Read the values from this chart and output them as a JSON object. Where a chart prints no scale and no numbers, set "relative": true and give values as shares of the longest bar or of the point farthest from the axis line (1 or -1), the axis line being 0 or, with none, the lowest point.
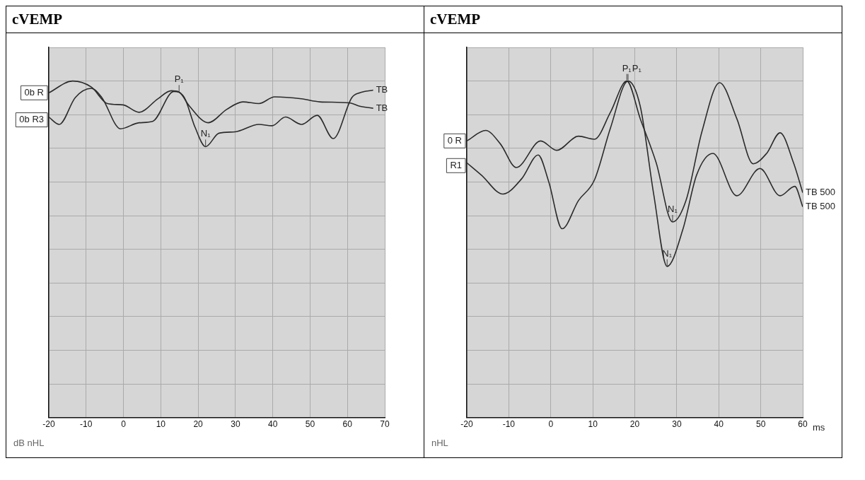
{
  "chart_data": [
    {
      "type": "line",
      "title": "cVEMP",
      "relative": true,
      "grid": true,
      "legend": false,
      "marker": "none",
      "xlim": [
        -20,
        70
      ],
      "xticks": [
        -20,
        -10,
        0,
        10,
        20,
        30,
        40,
        50,
        60,
        70
      ],
      "series": [
        {
          "name": "0b R",
          "color": "#2b2b2b",
          "x": [
            -20,
            -13.6,
            -8.6,
            -4.3,
            -0.1,
            4.2,
            9.2,
            12.8,
            14.9,
            17.7,
            22.7,
            27.7,
            32.0,
            36.3,
            40.5,
            47.7,
            52.6,
            60.5,
            63.3,
            66.9
          ],
          "values": [
            0.965,
            1,
            0.982,
            0.933,
            0.929,
            0.907,
            0.947,
            0.971,
            0.967,
            0.925,
            0.876,
            0.916,
            0.938,
            0.933,
            0.953,
            0.947,
            0.938,
            0.935,
            0.925,
            0.919
          ]
        },
        {
          "name": "0b R3",
          "color": "#2b2b2b",
          "x": [
            -20,
            -17.2,
            -12.9,
            -8.6,
            -5.8,
            -0.8,
            4.2,
            7.8,
            13.5,
            16.3,
            19.2,
            22.0,
            25.6,
            29.9,
            36.3,
            39.8,
            43.4,
            47.7,
            51.9,
            56.2,
            61.2,
            63.3,
            66.9
          ],
          "values": [
            0.893,
            0.871,
            0.951,
            0.978,
            0.951,
            0.858,
            0.876,
            0.88,
            0.969,
            0.951,
            0.862,
            0.805,
            0.845,
            0.849,
            0.871,
            0.867,
            0.893,
            0.871,
            0.898,
            0.829,
            0.951,
            0.965,
            0.973
          ]
        }
      ],
      "annotations": [
        {
          "text": "P₁",
          "x": 14.9,
          "y": 0.967
        },
        {
          "text": "N₁",
          "x": 22.0,
          "y": 0.805
        },
        {
          "text": "TB",
          "x": 66.9,
          "y": 0.973
        },
        {
          "text": "TB",
          "x": 66.9,
          "y": 0.919
        },
        "dB nHL"
      ]
    },
    {
      "type": "line",
      "title": "cVEMP",
      "xlabel": "ms",
      "relative": true,
      "grid": true,
      "legend": false,
      "marker": "none",
      "xlim": [
        -20,
        60
      ],
      "xticks": [
        -20,
        -10,
        0,
        10,
        20,
        30,
        40,
        50,
        60
      ],
      "series": [
        {
          "name": "0 R",
          "color": "#2b2b2b",
          "x": [
            -20,
            -15.5,
            -12,
            -8.2,
            -2.4,
            1.4,
            6.6,
            10.4,
            14.2,
            18.1,
            21.3,
            25.1,
            29,
            32.2,
            36,
            40.2,
            44.3,
            48.2,
            51.4,
            54.6,
            57.8,
            60
          ],
          "values": [
            0.822,
            0.853,
            0.813,
            0.743,
            0.822,
            0.794,
            0.836,
            0.827,
            0.907,
            1.0,
            0.888,
            0.757,
            0.581,
            0.645,
            0.85,
            0.995,
            0.888,
            0.754,
            0.785,
            0.846,
            0.757,
            0.668
          ]
        },
        {
          "name": "R1",
          "color": "#2b2b2b",
          "x": [
            -20,
            -16.5,
            -11.4,
            -6.9,
            -3,
            -0.5,
            2.7,
            6.6,
            10.4,
            14.2,
            18.4,
            21.3,
            24.5,
            27.7,
            31.5,
            34.7,
            38.6,
            44.3,
            49.8,
            54.6,
            58.1,
            60
          ],
          "values": [
            0.757,
            0.72,
            0.664,
            0.71,
            0.78,
            0.701,
            0.561,
            0.645,
            0.706,
            0.86,
            1.0,
            0.925,
            0.664,
            0.449,
            0.561,
            0.72,
            0.785,
            0.659,
            0.74,
            0.659,
            0.687,
            0.626
          ]
        }
      ],
      "annotations": [
        {
          "text": "P₁",
          "x": 18.1,
          "y": 1.0
        },
        {
          "text": "P₁",
          "x": 18.4,
          "y": 1.0
        },
        {
          "text": "N₁",
          "x": 29,
          "y": 0.581
        },
        {
          "text": "N₁",
          "x": 27.7,
          "y": 0.449
        },
        {
          "text": "TB 500",
          "x": 60,
          "y": 0.668
        },
        {
          "text": "TB 500",
          "x": 60,
          "y": 0.626
        },
        "nHL"
      ]
    }
  ]
}
